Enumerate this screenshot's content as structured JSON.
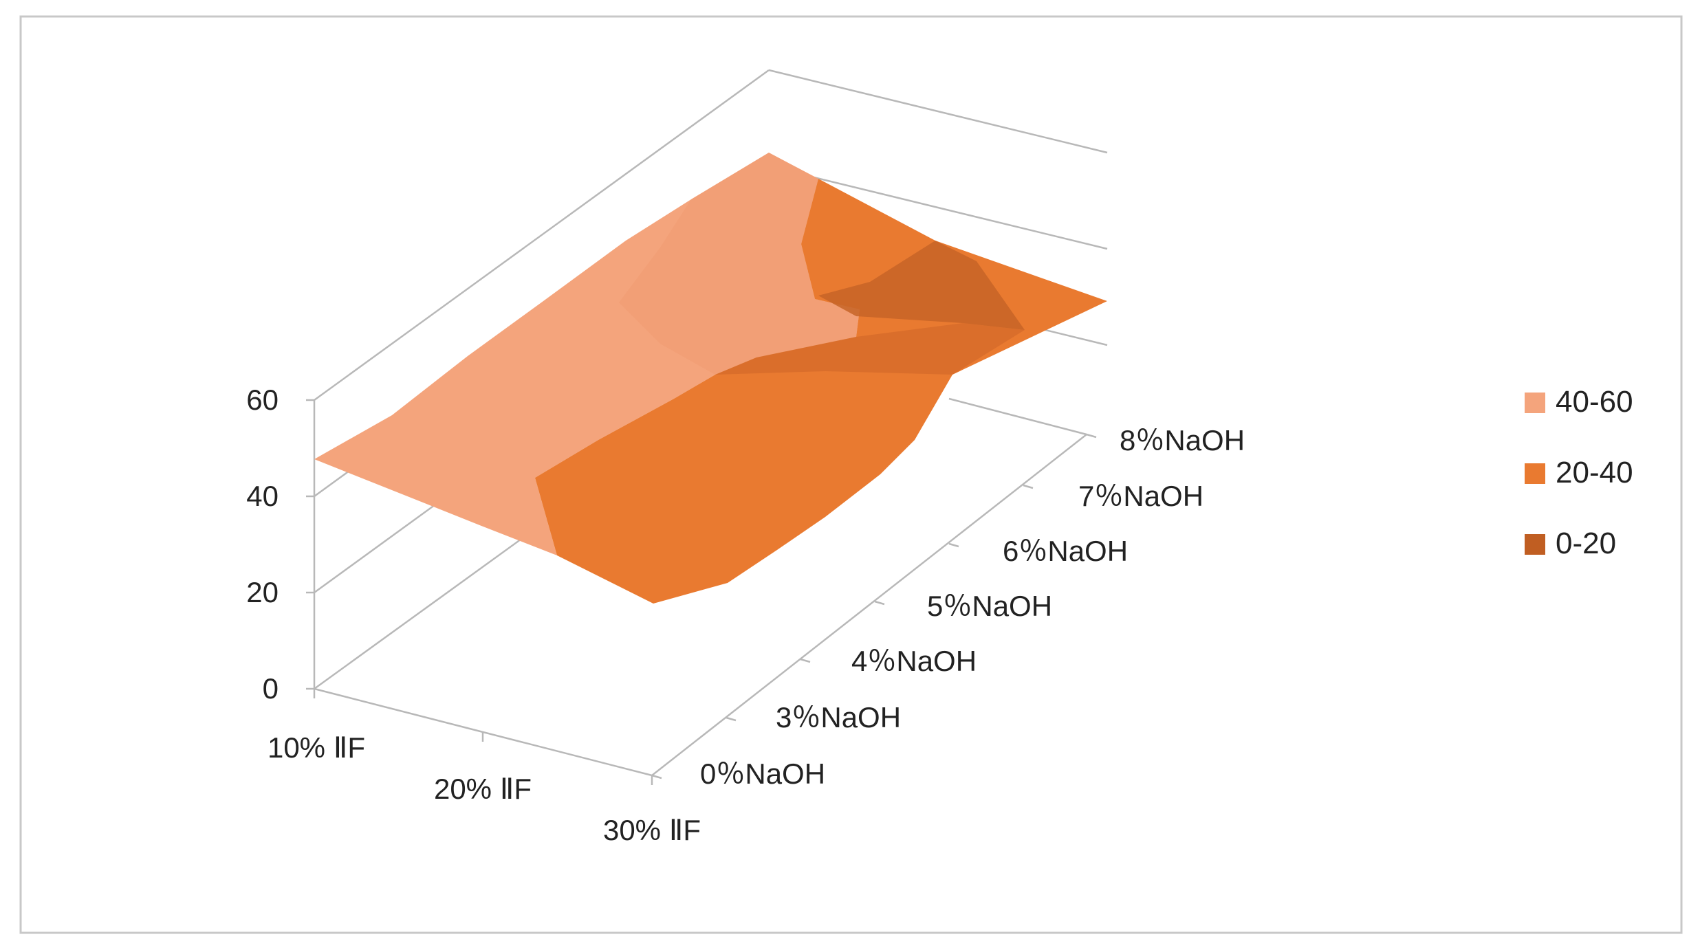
{
  "chart_data": {
    "type": "surface",
    "title": "",
    "x_categories": [
      "10% ⅡF",
      "20% ⅡF",
      "30% ⅡF"
    ],
    "y_categories": [
      "0％NaOH",
      "3％NaOH",
      "4％NaOH",
      "5％NaOH",
      "6％NaOH",
      "7％NaOH",
      "8％NaOH"
    ],
    "z_ticks": [
      "0",
      "20",
      "40",
      "60"
    ],
    "zlim": [
      0,
      60
    ],
    "grid": true,
    "legend_position": "right",
    "series_values": [
      [
        46,
        46,
        49,
        52,
        55,
        57,
        58
      ],
      [
        44,
        43,
        41,
        39,
        38,
        37,
        36
      ],
      [
        24,
        25,
        29,
        34,
        36,
        37,
        37
      ]
    ],
    "legend": [
      {
        "label": "40-60",
        "color": "#F4A47C"
      },
      {
        "label": "20-40",
        "color": "#E97A30"
      },
      {
        "label": "0-20",
        "color": "#C05E22"
      }
    ],
    "colors": {
      "band_40_60": "#F4A47C",
      "band_20_40": "#E97A30",
      "band_0_20": "#C05E22",
      "axis": "#B8B8B8",
      "border": "#C8C8C8"
    }
  }
}
